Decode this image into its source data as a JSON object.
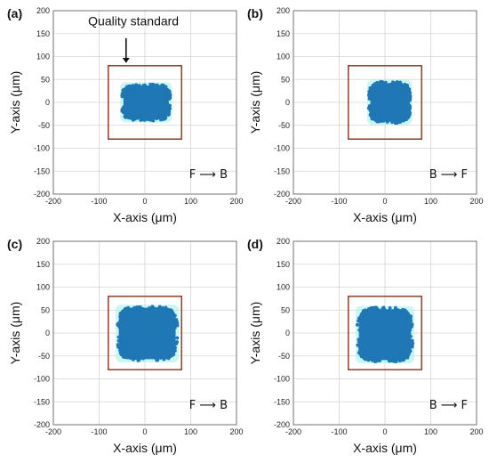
{
  "chart_data": [
    {
      "type": "scatter",
      "panel_label": "(a)",
      "xlabel": "X-axis (μm)",
      "ylabel": "Y-axis (μm)",
      "xlim": [
        -200,
        200
      ],
      "ylim": [
        -200,
        200
      ],
      "xticks": [
        -200,
        -100,
        0,
        100,
        200
      ],
      "yticks": [
        -200,
        -150,
        -100,
        -50,
        0,
        50,
        100,
        150,
        200
      ],
      "grid": true,
      "direction": "F ⟶ B",
      "annotation": "Quality standard",
      "quality_box": {
        "x": [
          -80,
          80
        ],
        "y": [
          -80,
          80
        ]
      },
      "cluster": {
        "x_range": [
          -50,
          55
        ],
        "y_range": [
          -40,
          40
        ]
      }
    },
    {
      "type": "scatter",
      "panel_label": "(b)",
      "xlabel": "X-axis (μm)",
      "ylabel": "Y-axis (μm)",
      "xlim": [
        -200,
        200
      ],
      "ylim": [
        -200,
        200
      ],
      "xticks": [
        -200,
        -100,
        0,
        100,
        200
      ],
      "yticks": [
        -200,
        -150,
        -100,
        -50,
        0,
        50,
        100,
        150,
        200
      ],
      "grid": true,
      "direction": "B ⟶ F",
      "quality_box": {
        "x": [
          -80,
          80
        ],
        "y": [
          -80,
          80
        ]
      },
      "cluster": {
        "x_range": [
          -35,
          55
        ],
        "y_range": [
          -45,
          45
        ]
      }
    },
    {
      "type": "scatter",
      "panel_label": "(c)",
      "xlabel": "X-axis (μm)",
      "ylabel": "Y-axis (μm)",
      "xlim": [
        -200,
        200
      ],
      "ylim": [
        -200,
        200
      ],
      "xticks": [
        -200,
        -100,
        0,
        100,
        200
      ],
      "yticks": [
        -200,
        -150,
        -100,
        -50,
        0,
        50,
        100,
        150,
        200
      ],
      "grid": true,
      "direction": "F ⟶ B",
      "quality_box": {
        "x": [
          -80,
          80
        ],
        "y": [
          -80,
          80
        ]
      },
      "cluster": {
        "x_range": [
          -60,
          70
        ],
        "y_range": [
          -60,
          58
        ]
      }
    },
    {
      "type": "scatter",
      "panel_label": "(d)",
      "xlabel": "X-axis (μm)",
      "ylabel": "Y-axis (μm)",
      "xlim": [
        -200,
        200
      ],
      "ylim": [
        -200,
        200
      ],
      "xticks": [
        -200,
        -100,
        0,
        100,
        200
      ],
      "yticks": [
        -200,
        -150,
        -100,
        -50,
        0,
        50,
        100,
        150,
        200
      ],
      "grid": true,
      "direction": "B ⟶ F",
      "quality_box": {
        "x": [
          -80,
          80
        ],
        "y": [
          -80,
          80
        ]
      },
      "cluster": {
        "x_range": [
          -60,
          60
        ],
        "y_range": [
          -62,
          55
        ]
      }
    }
  ],
  "colors": {
    "points": "#1f77b4",
    "halo": "#9eeee9",
    "box": "#8b2e1a",
    "grid": "#d4d4d4",
    "axis": "#555555"
  }
}
